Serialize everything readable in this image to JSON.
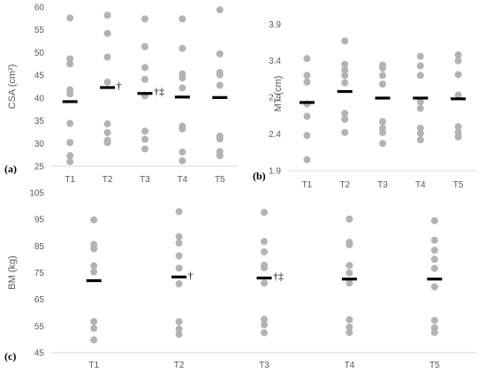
{
  "chart_data": [
    {
      "type": "scatter",
      "panel_label": "(a)",
      "ylabel": "CSA (cm²)",
      "categories": [
        "T1",
        "T2",
        "T3",
        "T4",
        "T5"
      ],
      "ylim": [
        25,
        60
      ],
      "yticks": [
        "25",
        "30",
        "35",
        "40",
        "45",
        "50",
        "55",
        "60"
      ],
      "points": [
        [
          57.6,
          48.6,
          47.5,
          41.8,
          40.9,
          34.4,
          30.2,
          27.3,
          26.0
        ],
        [
          58.2,
          54.2,
          49.0,
          43.5,
          34.3,
          32.4,
          30.7,
          30.2
        ],
        [
          57.4,
          51.3,
          46.7,
          44.1,
          40.5,
          32.7,
          30.9,
          28.8
        ],
        [
          57.4,
          50.9,
          45.3,
          44.4,
          42.2,
          33.8,
          33.2,
          28.1,
          26.2
        ],
        [
          59.4,
          49.7,
          45.6,
          45.1,
          42.8,
          31.6,
          31.0,
          28.2,
          27.3
        ]
      ],
      "means": [
        39.2,
        42.3,
        41.0,
        40.2,
        40.1
      ],
      "annotations": [
        "",
        "†",
        "†‡",
        "",
        ""
      ]
    },
    {
      "type": "scatter",
      "panel_label": "(b)",
      "ylabel": "MT (cm)",
      "categories": [
        "T1",
        "T2",
        "T3",
        "T4",
        "T5"
      ],
      "ylim": [
        1.9,
        4.0
      ],
      "yticks": [
        "1.9",
        "2.4",
        "2.9",
        "3.4",
        "3.9"
      ],
      "points": [
        [
          3.43,
          3.2,
          3.11,
          2.81,
          2.64,
          2.38,
          2.05
        ],
        [
          3.67,
          3.35,
          3.27,
          3.2,
          3.1,
          2.68,
          2.6,
          2.42
        ],
        [
          3.34,
          3.3,
          3.2,
          3.08,
          2.57,
          2.48,
          2.42,
          2.27
        ],
        [
          3.46,
          3.33,
          3.2,
          2.84,
          2.75,
          2.48,
          2.41,
          2.32
        ],
        [
          3.48,
          3.4,
          3.21,
          2.93,
          2.5,
          2.42,
          2.36
        ]
      ],
      "means": [
        2.83,
        2.98,
        2.89,
        2.89,
        2.88
      ],
      "annotations": [
        "",
        "",
        "",
        "",
        ""
      ]
    },
    {
      "type": "scatter",
      "panel_label": "(c)",
      "ylabel": "BM (kg)",
      "categories": [
        "T1",
        "T2",
        "T3",
        "T4",
        "T5"
      ],
      "ylim": [
        45,
        105
      ],
      "yticks": [
        "45",
        "55",
        "65",
        "75",
        "85",
        "95",
        "105"
      ],
      "points": [
        [
          94.8,
          85.6,
          84.0,
          77.6,
          75.3,
          56.7,
          54.1,
          49.8
        ],
        [
          97.9,
          88.5,
          86.1,
          81.3,
          76.7,
          70.8,
          56.6,
          53.9,
          51.9
        ],
        [
          97.6,
          86.7,
          82.8,
          77.8,
          76.9,
          71.1,
          57.5,
          55.5,
          52.5
        ],
        [
          95.1,
          86.4,
          85.5,
          77.7,
          74.9,
          71.1,
          57.4,
          54.6,
          52.6
        ],
        [
          94.5,
          87.2,
          83.4,
          80.0,
          76.6,
          69.7,
          57.1,
          54.3,
          52.6
        ]
      ],
      "means": [
        72.0,
        73.4,
        73.0,
        72.6,
        72.6
      ],
      "annotations": [
        "",
        "†",
        "†‡",
        "",
        ""
      ]
    }
  ],
  "colors": {
    "point": "#b3b3b3",
    "mean": "#000000",
    "axis": "#d9d9d9",
    "text": "#595959"
  }
}
